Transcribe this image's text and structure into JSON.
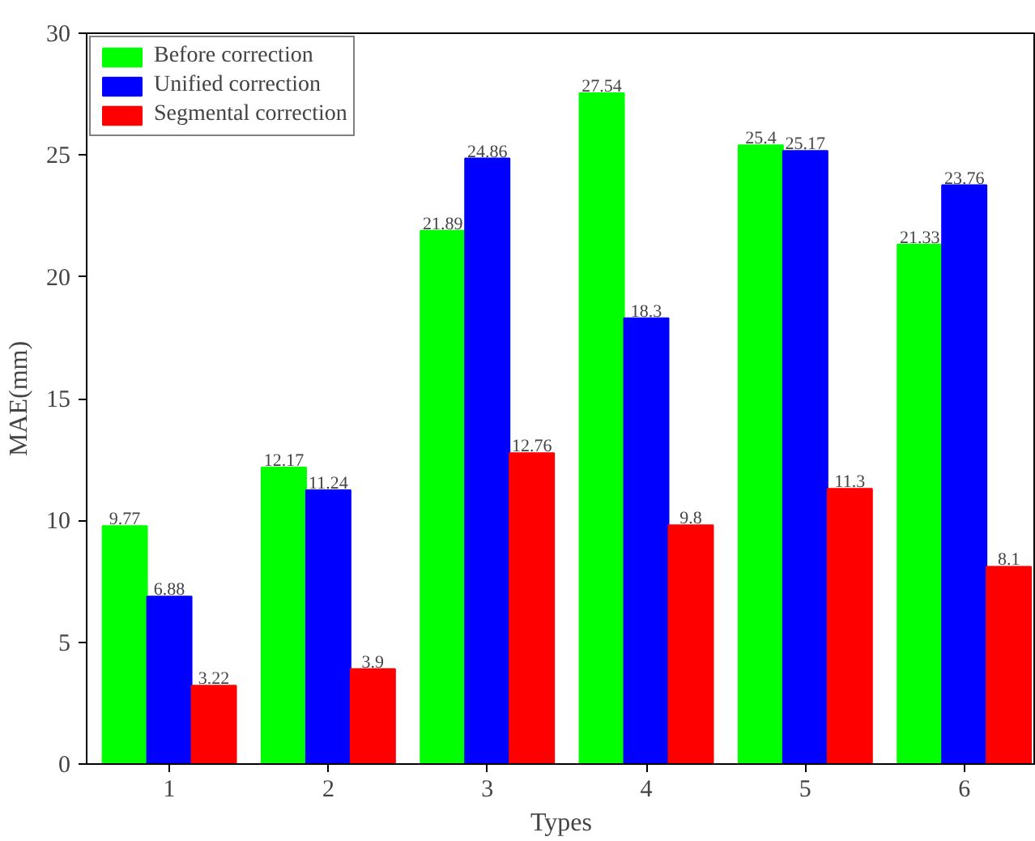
{
  "chart_data": {
    "type": "bar",
    "xlabel": "Types",
    "ylabel": "MAE(mm)",
    "categories": [
      "1",
      "2",
      "3",
      "4",
      "5",
      "6"
    ],
    "series": [
      {
        "name": "Before correction",
        "color": "#00ff00",
        "values": [
          9.77,
          12.17,
          21.89,
          27.54,
          25.4,
          21.33
        ]
      },
      {
        "name": "Unified correction",
        "color": "#0000ff",
        "values": [
          6.88,
          11.24,
          24.86,
          18.3,
          25.17,
          23.76
        ]
      },
      {
        "name": "Segmental correction",
        "color": "#ff0000",
        "values": [
          3.22,
          3.9,
          12.76,
          9.8,
          11.3,
          8.1
        ]
      }
    ],
    "ylim": [
      0,
      30
    ],
    "yticks": [
      0,
      5,
      10,
      15,
      20,
      25,
      30
    ],
    "data_labels": true,
    "legend": "top left",
    "grid": false
  }
}
